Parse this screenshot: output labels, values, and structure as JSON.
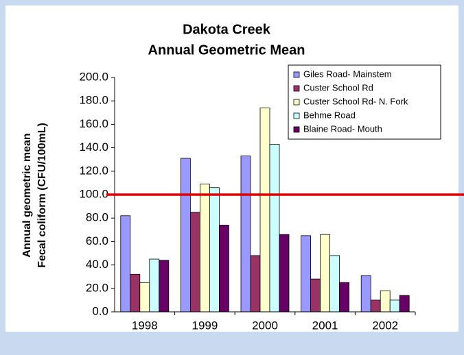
{
  "chart_data": {
    "type": "bar",
    "title": [
      "Dakota Creek",
      "Annual Geometric Mean"
    ],
    "y_label": [
      "Annual geometric mean",
      "Fecal coliform (CFU/100mL)"
    ],
    "categories": [
      "1998",
      "1999",
      "2000",
      "2001",
      "2002"
    ],
    "series": [
      {
        "name": "Giles Road- Mainstem",
        "color": "#9999ff",
        "values": [
          82,
          131,
          133,
          65,
          31
        ]
      },
      {
        "name": "Custer School Rd",
        "color": "#993366",
        "values": [
          32,
          85,
          48,
          28,
          10
        ]
      },
      {
        "name": "Custer School Rd- N. Fork",
        "color": "#ffffcc",
        "values": [
          25,
          109,
          174,
          66,
          18
        ]
      },
      {
        "name": "Behme Road",
        "color": "#ccffff",
        "values": [
          45,
          106,
          143,
          48,
          10
        ]
      },
      {
        "name": "Blaine Road- Mouth",
        "color": "#660066",
        "values": [
          44,
          74,
          66,
          25,
          14
        ]
      }
    ],
    "ylim": [
      0,
      200
    ],
    "yticks": [
      {
        "value": 0,
        "label": "0.0"
      },
      {
        "value": 20,
        "label": "20.0"
      },
      {
        "value": 40,
        "label": "40.0"
      },
      {
        "value": 60,
        "label": "60.0"
      },
      {
        "value": 80,
        "label": "80.0"
      },
      {
        "value": 100,
        "label": "100.0"
      },
      {
        "value": 120,
        "label": "120.0"
      },
      {
        "value": 140,
        "label": "140.0"
      },
      {
        "value": 160,
        "label": "160.0"
      },
      {
        "value": 180,
        "label": "180.0"
      },
      {
        "value": 200,
        "label": "200.0"
      }
    ],
    "reference_line": {
      "value": 100,
      "color": "#e00000"
    },
    "grid": false,
    "legend": "top-right"
  }
}
